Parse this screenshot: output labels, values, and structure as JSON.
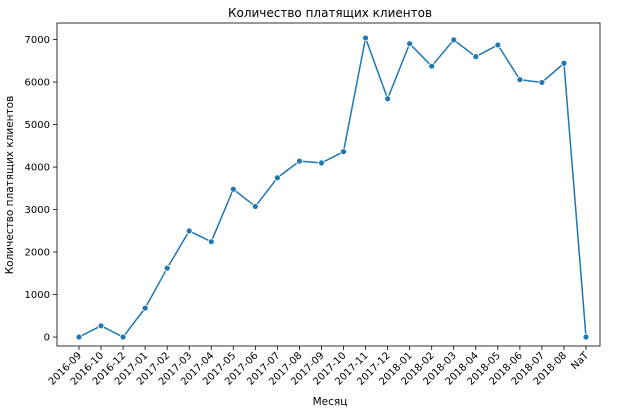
{
  "chart_data": {
    "type": "line",
    "title": "Количество платящих клиентов",
    "xlabel": "Месяц",
    "ylabel": "Количество платящих клиентов",
    "categories": [
      "2016-09",
      "2016-10",
      "2016-12",
      "2017-01",
      "2017-02",
      "2017-03",
      "2017-04",
      "2017-05",
      "2017-06",
      "2017-07",
      "2017-08",
      "2017-09",
      "2017-10",
      "2017-11",
      "2017-12",
      "2018-01",
      "2018-02",
      "2018-03",
      "2018-04",
      "2018-05",
      "2018-06",
      "2018-07",
      "2018-08",
      "NaT"
    ],
    "series": [
      {
        "values": [
          1,
          265,
          1,
          681,
          1621,
          2498,
          2245,
          3478,
          3073,
          3748,
          4140,
          4098,
          4363,
          7038,
          5608,
          6903,
          6374,
          6993,
          6598,
          6874,
          6057,
          5991,
          6443,
          1
        ],
        "color": "#1f77b4",
        "marker": "circle"
      }
    ],
    "ylim": [
      -210,
      7390
    ],
    "yticks": [
      0,
      1000,
      2000,
      3000,
      4000,
      5000,
      6000,
      7000
    ],
    "grid": false,
    "legend": "none",
    "xtick_rotation": 45
  }
}
